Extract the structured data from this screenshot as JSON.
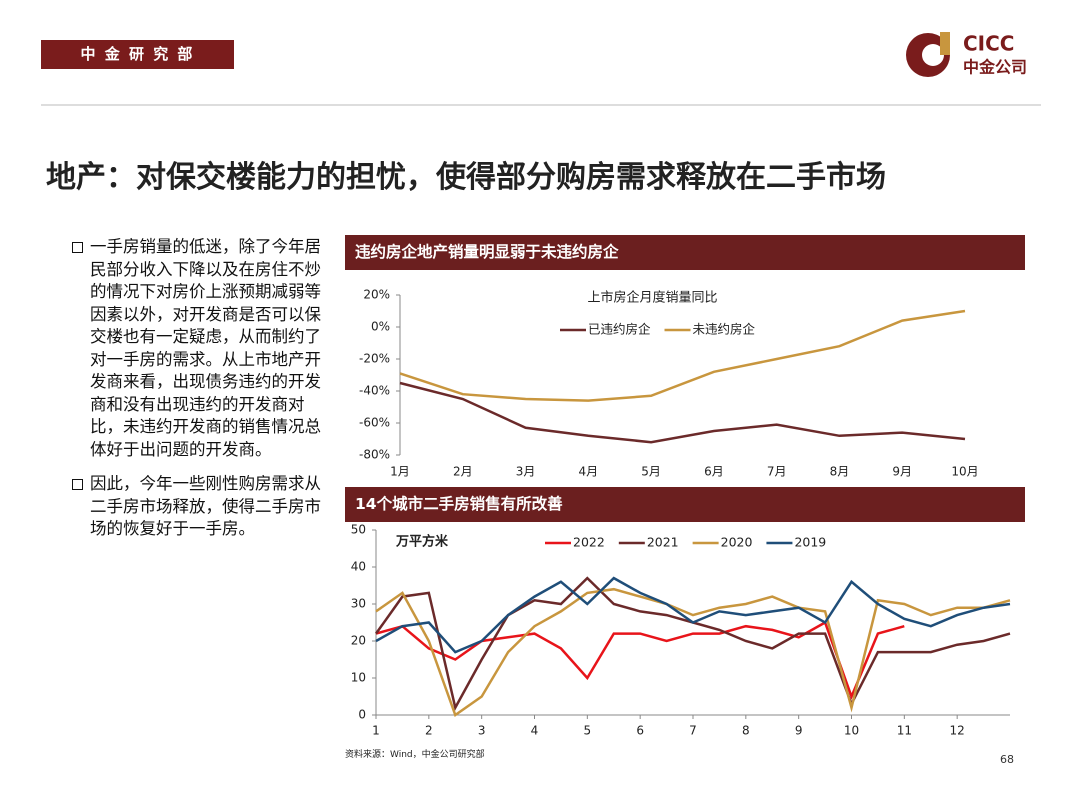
{
  "header": {
    "badge": "中 金 研 究 部",
    "logo": "CICC",
    "logo_sub": "中金公司"
  },
  "title": "地产：对保交楼能力的担忧，使得部分购房需求释放在二手市场",
  "bullets": [
    "一手房销量的低迷，除了今年居民部分收入下降以及在房住不炒的情况下对房价上涨预期减弱等因素以外，对开发商是否可以保交楼也有一定疑虑，从而制约了对一手房的需求。从上市地产开发商来看，出现债务违约的开发商和没有出现违约的开发商对比，未违约开发商的销售情况总体好于出问题的开发商。",
    "因此，今年一些刚性购房需求从二手房市场释放，使得二手房市场的恢复好于一手房。"
  ],
  "source": "资料来源：Wind，中金公司研究部",
  "page_number": "68",
  "chart_data": [
    {
      "type": "line",
      "heading": "违约房企地产销量明显弱于未违约房企",
      "title": "上市房企月度销量同比",
      "categories": [
        "1月",
        "2月",
        "3月",
        "4月",
        "5月",
        "6月",
        "7月",
        "8月",
        "9月",
        "10月"
      ],
      "series": [
        {
          "name": "已违约房企",
          "color": "#6b2a2a",
          "values": [
            -35,
            -45,
            -63,
            -68,
            -72,
            -65,
            -61,
            -68,
            -66,
            -70
          ]
        },
        {
          "name": "未违约房企",
          "color": "#c8963e",
          "values": [
            -29,
            -42,
            -45,
            -46,
            -43,
            -28,
            -20,
            -12,
            4,
            10
          ]
        }
      ],
      "ylim": [
        -80,
        20
      ],
      "yticks": [
        {
          "value": -80,
          "label": "-80%"
        },
        {
          "value": -60,
          "label": "-60%"
        },
        {
          "value": -40,
          "label": "-40%"
        },
        {
          "value": -20,
          "label": "-20%"
        },
        {
          "value": 0,
          "label": "0%"
        },
        {
          "value": 20,
          "label": "20%"
        }
      ],
      "grid": false
    },
    {
      "type": "line",
      "heading": "14个城市二手房销售有所改善",
      "y_label": "万平方米",
      "x": [
        1,
        1.5,
        2,
        2.5,
        3,
        3.5,
        4,
        4.5,
        5,
        5.5,
        6,
        6.5,
        7,
        7.5,
        8,
        8.5,
        9,
        9.5,
        10,
        10.5,
        11,
        11.5,
        12,
        12.5,
        13
      ],
      "series": [
        {
          "name": "2022",
          "color": "#e8141a",
          "values": [
            22,
            24,
            18,
            15,
            20,
            21,
            22,
            18,
            10,
            22,
            22,
            20,
            22,
            22,
            24,
            23,
            21,
            25,
            5,
            22,
            24,
            null,
            null,
            null,
            null
          ]
        },
        {
          "name": "2021",
          "color": "#6b2a2a",
          "values": [
            22,
            32,
            33,
            2,
            15,
            27,
            31,
            30,
            37,
            30,
            28,
            27,
            25,
            23,
            20,
            18,
            22,
            22,
            3,
            17,
            17,
            17,
            19,
            20,
            22
          ]
        },
        {
          "name": "2020",
          "color": "#c8963e",
          "values": [
            28,
            33,
            20,
            0,
            5,
            17,
            24,
            28,
            33,
            34,
            32,
            30,
            27,
            29,
            30,
            32,
            29,
            28,
            2,
            31,
            30,
            27,
            29,
            29,
            31
          ]
        },
        {
          "name": "2019",
          "color": "#1f4e79",
          "values": [
            20,
            24,
            25,
            17,
            20,
            27,
            32,
            36,
            30,
            37,
            33,
            30,
            25,
            28,
            27,
            28,
            29,
            25,
            36,
            30,
            26,
            24,
            27,
            29,
            30
          ]
        }
      ],
      "xlim": [
        1,
        13
      ],
      "xticks": [
        1,
        2,
        3,
        4,
        5,
        6,
        7,
        8,
        9,
        10,
        11,
        12
      ],
      "ylim": [
        0,
        50
      ],
      "yticks": [
        0,
        10,
        20,
        30,
        40,
        50
      ],
      "grid": false
    }
  ]
}
